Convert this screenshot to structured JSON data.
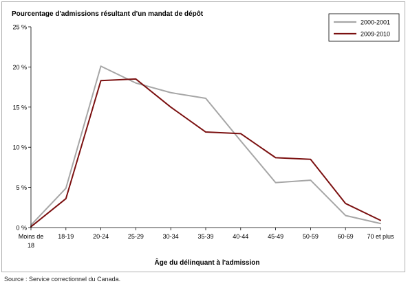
{
  "chart_data": {
    "type": "line",
    "ylabel": "Pourcentage d'admissions résultant d'un mandat de dépôt",
    "xlabel": "Âge du délinquant à l'admission",
    "categories": [
      "Moins de 18",
      "18-19",
      "20-24",
      "25-29",
      "30-34",
      "35-39",
      "40-44",
      "45-49",
      "50-59",
      "60-69",
      "70 et plus"
    ],
    "category_lines": [
      [
        "Moins de",
        "18"
      ],
      [
        "18-19"
      ],
      [
        "20-24"
      ],
      [
        "25-29"
      ],
      [
        "30-34"
      ],
      [
        "35-39"
      ],
      [
        "40-44"
      ],
      [
        "45-49"
      ],
      [
        "50-59"
      ],
      [
        "60-69"
      ],
      [
        "70 et plus"
      ]
    ],
    "ylim": [
      0,
      25
    ],
    "yticks": [
      0,
      5,
      10,
      15,
      20,
      25
    ],
    "ytick_labels": [
      "0 %",
      "5 %",
      "10 %",
      "15 %",
      "20 %",
      "25 %"
    ],
    "grid": false,
    "legend_position": "top-right",
    "series": [
      {
        "name": "2000-2001",
        "color": "#a6a6a6",
        "values": [
          0.3,
          4.9,
          20.1,
          18.0,
          16.8,
          16.1,
          10.8,
          5.6,
          5.9,
          1.5,
          0.5
        ]
      },
      {
        "name": "2009-2010",
        "color": "#7b1010",
        "values": [
          0.1,
          3.6,
          18.3,
          18.5,
          15.0,
          11.9,
          11.7,
          8.7,
          8.5,
          3.0,
          0.9
        ]
      }
    ]
  },
  "source": "Source : Service correctionnel du Canada."
}
